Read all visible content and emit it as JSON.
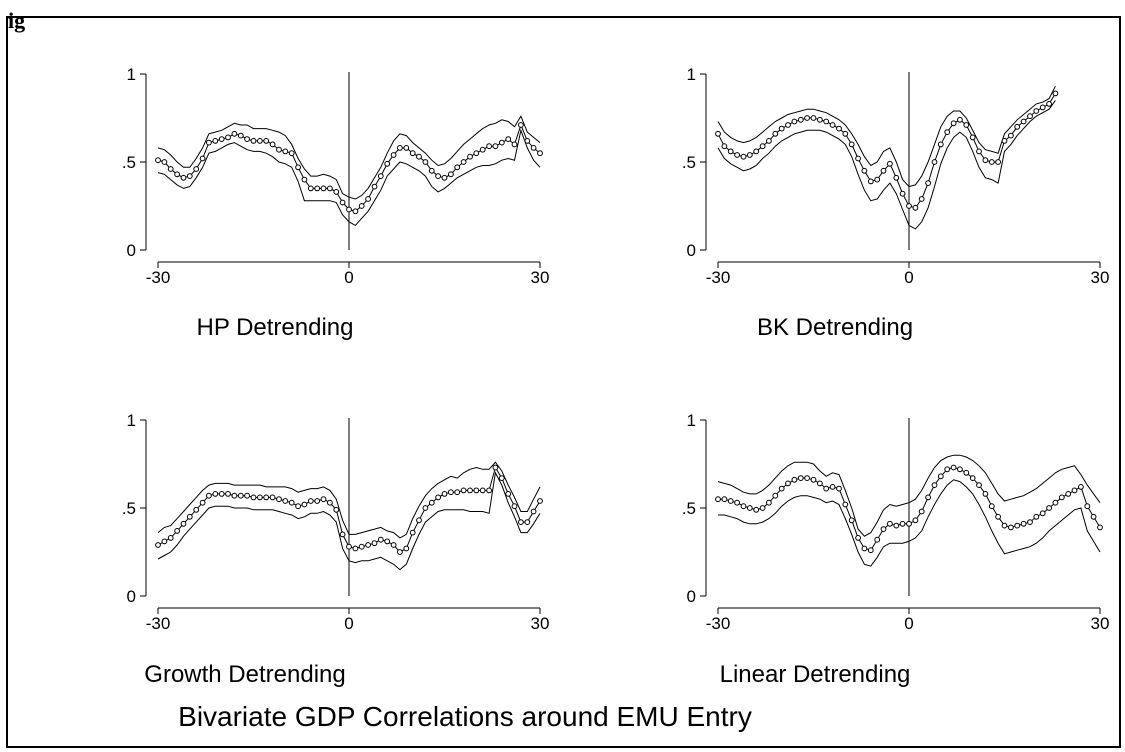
{
  "figure": {
    "corner_label": "ig",
    "caption": "Bivariate GDP Correlations around EMU Entry"
  },
  "colors": {
    "line": "#000000",
    "marker_fill": "#ffffff",
    "background": "#ffffff"
  },
  "chart_data": [
    {
      "type": "line",
      "title": "HP Detrending",
      "xlim": [
        -30,
        30
      ],
      "ylim": [
        0,
        1
      ],
      "x_ticks": [
        -30,
        0,
        30
      ],
      "x_tick_labels": [
        "-30",
        "0",
        "30"
      ],
      "y_ticks": [
        0,
        0.5,
        1
      ],
      "y_tick_labels": [
        "0",
        ".5",
        "1"
      ],
      "reference_line_x": 0,
      "x": [
        -30,
        -29,
        -28,
        -27,
        -26,
        -25,
        -24,
        -23,
        -22,
        -21,
        -20,
        -19,
        -18,
        -17,
        -16,
        -15,
        -14,
        -13,
        -12,
        -11,
        -10,
        -9,
        -8,
        -7,
        -6,
        -5,
        -4,
        -3,
        -2,
        -1,
        0,
        1,
        2,
        3,
        4,
        5,
        6,
        7,
        8,
        9,
        10,
        11,
        12,
        13,
        14,
        15,
        16,
        17,
        18,
        19,
        20,
        21,
        22,
        23,
        24,
        25,
        26,
        27,
        28,
        29,
        30
      ],
      "series": [
        {
          "role": "upper",
          "values": [
            0.58,
            0.57,
            0.54,
            0.5,
            0.47,
            0.47,
            0.52,
            0.58,
            0.66,
            0.67,
            0.68,
            0.7,
            0.72,
            0.71,
            0.71,
            0.69,
            0.69,
            0.69,
            0.68,
            0.67,
            0.65,
            0.6,
            0.52,
            0.46,
            0.42,
            0.42,
            0.43,
            0.42,
            0.4,
            0.32,
            0.3,
            0.29,
            0.31,
            0.35,
            0.41,
            0.47,
            0.55,
            0.62,
            0.66,
            0.65,
            0.61,
            0.58,
            0.55,
            0.51,
            0.48,
            0.49,
            0.52,
            0.56,
            0.6,
            0.63,
            0.66,
            0.69,
            0.71,
            0.72,
            0.74,
            0.73,
            0.7,
            0.76,
            0.67,
            0.64,
            0.61
          ]
        },
        {
          "role": "estimate",
          "markers": true,
          "values": [
            0.51,
            0.5,
            0.46,
            0.43,
            0.41,
            0.42,
            0.46,
            0.52,
            0.61,
            0.62,
            0.63,
            0.64,
            0.66,
            0.65,
            0.63,
            0.62,
            0.62,
            0.62,
            0.6,
            0.57,
            0.56,
            0.55,
            0.47,
            0.4,
            0.35,
            0.35,
            0.35,
            0.35,
            0.33,
            0.27,
            0.23,
            0.22,
            0.25,
            0.29,
            0.36,
            0.42,
            0.49,
            0.54,
            0.58,
            0.58,
            0.55,
            0.53,
            0.5,
            0.45,
            0.42,
            0.41,
            0.43,
            0.47,
            0.5,
            0.53,
            0.55,
            0.57,
            0.59,
            0.59,
            0.61,
            0.63,
            0.6,
            0.71,
            0.62,
            0.58,
            0.55
          ]
        },
        {
          "role": "lower",
          "values": [
            0.44,
            0.43,
            0.4,
            0.37,
            0.35,
            0.36,
            0.41,
            0.47,
            0.55,
            0.56,
            0.58,
            0.6,
            0.61,
            0.59,
            0.57,
            0.56,
            0.56,
            0.55,
            0.53,
            0.5,
            0.49,
            0.47,
            0.39,
            0.28,
            0.28,
            0.28,
            0.28,
            0.28,
            0.27,
            0.2,
            0.16,
            0.14,
            0.18,
            0.22,
            0.28,
            0.34,
            0.42,
            0.46,
            0.5,
            0.49,
            0.47,
            0.45,
            0.42,
            0.36,
            0.33,
            0.35,
            0.38,
            0.41,
            0.43,
            0.45,
            0.47,
            0.48,
            0.48,
            0.49,
            0.51,
            0.52,
            0.51,
            0.68,
            0.58,
            0.51,
            0.47
          ]
        }
      ]
    },
    {
      "type": "line",
      "title": "BK Detrending",
      "xlim": [
        -30,
        30
      ],
      "ylim": [
        0,
        1
      ],
      "x_ticks": [
        -30,
        0,
        30
      ],
      "x_tick_labels": [
        "-30",
        "0",
        "30"
      ],
      "y_ticks": [
        0,
        0.5,
        1
      ],
      "y_tick_labels": [
        "0",
        ".5",
        "1"
      ],
      "reference_line_x": 0,
      "x": [
        -30,
        -29,
        -28,
        -27,
        -26,
        -25,
        -24,
        -23,
        -22,
        -21,
        -20,
        -19,
        -18,
        -17,
        -16,
        -15,
        -14,
        -13,
        -12,
        -11,
        -10,
        -9,
        -8,
        -7,
        -6,
        -5,
        -4,
        -3,
        -2,
        -1,
        0,
        1,
        2,
        3,
        4,
        5,
        6,
        7,
        8,
        9,
        10,
        11,
        12,
        13,
        14,
        15,
        16,
        17,
        18,
        19,
        20,
        21,
        22,
        23
      ],
      "series": [
        {
          "role": "upper",
          "values": [
            0.73,
            0.67,
            0.64,
            0.62,
            0.61,
            0.62,
            0.64,
            0.67,
            0.7,
            0.73,
            0.75,
            0.77,
            0.78,
            0.79,
            0.8,
            0.8,
            0.79,
            0.78,
            0.76,
            0.74,
            0.71,
            0.66,
            0.6,
            0.53,
            0.48,
            0.5,
            0.56,
            0.58,
            0.5,
            0.4,
            0.36,
            0.37,
            0.42,
            0.5,
            0.6,
            0.7,
            0.76,
            0.79,
            0.79,
            0.75,
            0.68,
            0.61,
            0.57,
            0.56,
            0.55,
            0.66,
            0.7,
            0.74,
            0.77,
            0.8,
            0.83,
            0.84,
            0.86,
            0.93
          ]
        },
        {
          "role": "estimate",
          "markers": true,
          "values": [
            0.66,
            0.59,
            0.56,
            0.54,
            0.53,
            0.54,
            0.56,
            0.59,
            0.62,
            0.66,
            0.69,
            0.71,
            0.73,
            0.74,
            0.75,
            0.75,
            0.74,
            0.73,
            0.71,
            0.69,
            0.66,
            0.6,
            0.52,
            0.45,
            0.39,
            0.4,
            0.45,
            0.49,
            0.41,
            0.32,
            0.25,
            0.24,
            0.29,
            0.38,
            0.5,
            0.6,
            0.67,
            0.72,
            0.74,
            0.71,
            0.64,
            0.56,
            0.51,
            0.5,
            0.5,
            0.62,
            0.65,
            0.7,
            0.73,
            0.76,
            0.79,
            0.81,
            0.83,
            0.89
          ]
        },
        {
          "role": "lower",
          "values": [
            0.58,
            0.52,
            0.49,
            0.47,
            0.45,
            0.46,
            0.48,
            0.52,
            0.55,
            0.59,
            0.62,
            0.64,
            0.66,
            0.67,
            0.68,
            0.68,
            0.68,
            0.67,
            0.65,
            0.63,
            0.6,
            0.53,
            0.43,
            0.34,
            0.28,
            0.29,
            0.34,
            0.38,
            0.32,
            0.23,
            0.14,
            0.12,
            0.16,
            0.24,
            0.36,
            0.49,
            0.58,
            0.64,
            0.67,
            0.64,
            0.56,
            0.47,
            0.41,
            0.4,
            0.38,
            0.56,
            0.6,
            0.65,
            0.69,
            0.73,
            0.76,
            0.78,
            0.8,
            0.85
          ]
        }
      ]
    },
    {
      "type": "line",
      "title": "Growth Detrending",
      "xlim": [
        -30,
        30
      ],
      "ylim": [
        0,
        1
      ],
      "x_ticks": [
        -30,
        0,
        30
      ],
      "x_tick_labels": [
        "-30",
        "0",
        "30"
      ],
      "y_ticks": [
        0,
        0.5,
        1
      ],
      "y_tick_labels": [
        "0",
        ".5",
        "1"
      ],
      "reference_line_x": 0,
      "x": [
        -30,
        -29,
        -28,
        -27,
        -26,
        -25,
        -24,
        -23,
        -22,
        -21,
        -20,
        -19,
        -18,
        -17,
        -16,
        -15,
        -14,
        -13,
        -12,
        -11,
        -10,
        -9,
        -8,
        -7,
        -6,
        -5,
        -4,
        -3,
        -2,
        -1,
        0,
        1,
        2,
        3,
        4,
        5,
        6,
        7,
        8,
        9,
        10,
        11,
        12,
        13,
        14,
        15,
        16,
        17,
        18,
        19,
        20,
        21,
        22,
        23,
        24,
        25,
        26,
        27,
        28,
        29,
        30
      ],
      "series": [
        {
          "role": "upper",
          "values": [
            0.36,
            0.39,
            0.4,
            0.44,
            0.48,
            0.52,
            0.56,
            0.6,
            0.63,
            0.64,
            0.64,
            0.64,
            0.63,
            0.63,
            0.63,
            0.63,
            0.63,
            0.62,
            0.62,
            0.62,
            0.62,
            0.61,
            0.59,
            0.6,
            0.61,
            0.61,
            0.62,
            0.6,
            0.55,
            0.43,
            0.35,
            0.35,
            0.36,
            0.37,
            0.38,
            0.39,
            0.37,
            0.36,
            0.33,
            0.35,
            0.44,
            0.51,
            0.57,
            0.61,
            0.64,
            0.66,
            0.68,
            0.67,
            0.7,
            0.72,
            0.73,
            0.72,
            0.72,
            0.76,
            0.71,
            0.63,
            0.56,
            0.48,
            0.48,
            0.55,
            0.62
          ]
        },
        {
          "role": "estimate",
          "markers": true,
          "values": [
            0.29,
            0.31,
            0.33,
            0.37,
            0.41,
            0.45,
            0.49,
            0.53,
            0.57,
            0.58,
            0.58,
            0.58,
            0.57,
            0.57,
            0.57,
            0.56,
            0.56,
            0.56,
            0.56,
            0.55,
            0.54,
            0.53,
            0.51,
            0.52,
            0.54,
            0.54,
            0.55,
            0.53,
            0.49,
            0.35,
            0.28,
            0.27,
            0.28,
            0.29,
            0.3,
            0.32,
            0.31,
            0.29,
            0.25,
            0.27,
            0.36,
            0.43,
            0.5,
            0.53,
            0.56,
            0.58,
            0.59,
            0.59,
            0.6,
            0.6,
            0.6,
            0.6,
            0.6,
            0.73,
            0.67,
            0.58,
            0.51,
            0.42,
            0.42,
            0.48,
            0.54
          ]
        },
        {
          "role": "lower",
          "values": [
            0.21,
            0.23,
            0.25,
            0.29,
            0.34,
            0.38,
            0.42,
            0.46,
            0.5,
            0.51,
            0.51,
            0.51,
            0.5,
            0.5,
            0.5,
            0.49,
            0.49,
            0.49,
            0.49,
            0.48,
            0.47,
            0.46,
            0.44,
            0.45,
            0.47,
            0.47,
            0.48,
            0.46,
            0.42,
            0.27,
            0.2,
            0.19,
            0.2,
            0.2,
            0.21,
            0.22,
            0.2,
            0.18,
            0.15,
            0.18,
            0.27,
            0.35,
            0.42,
            0.45,
            0.48,
            0.49,
            0.49,
            0.49,
            0.49,
            0.48,
            0.48,
            0.48,
            0.47,
            0.7,
            0.63,
            0.53,
            0.45,
            0.36,
            0.36,
            0.41,
            0.47
          ]
        }
      ]
    },
    {
      "type": "line",
      "title": "Linear Detrending",
      "xlim": [
        -30,
        30
      ],
      "ylim": [
        0,
        1
      ],
      "x_ticks": [
        -30,
        0,
        30
      ],
      "x_tick_labels": [
        "-30",
        "0",
        "30"
      ],
      "y_ticks": [
        0,
        0.5,
        1
      ],
      "y_tick_labels": [
        "0",
        ".5",
        "1"
      ],
      "reference_line_x": 0,
      "x": [
        -30,
        -29,
        -28,
        -27,
        -26,
        -25,
        -24,
        -23,
        -22,
        -21,
        -20,
        -19,
        -18,
        -17,
        -16,
        -15,
        -14,
        -13,
        -12,
        -11,
        -10,
        -9,
        -8,
        -7,
        -6,
        -5,
        -4,
        -3,
        -2,
        -1,
        0,
        1,
        2,
        3,
        4,
        5,
        6,
        7,
        8,
        9,
        10,
        11,
        12,
        13,
        14,
        15,
        16,
        17,
        18,
        19,
        20,
        21,
        22,
        23,
        24,
        25,
        26,
        27,
        28,
        29,
        30
      ],
      "series": [
        {
          "role": "upper",
          "values": [
            0.65,
            0.64,
            0.63,
            0.61,
            0.59,
            0.58,
            0.58,
            0.6,
            0.63,
            0.67,
            0.71,
            0.74,
            0.76,
            0.76,
            0.76,
            0.75,
            0.71,
            0.68,
            0.7,
            0.69,
            0.6,
            0.5,
            0.38,
            0.34,
            0.36,
            0.42,
            0.49,
            0.52,
            0.51,
            0.52,
            0.53,
            0.55,
            0.6,
            0.67,
            0.73,
            0.77,
            0.79,
            0.8,
            0.8,
            0.79,
            0.77,
            0.74,
            0.7,
            0.64,
            0.58,
            0.54,
            0.55,
            0.56,
            0.57,
            0.59,
            0.61,
            0.64,
            0.67,
            0.7,
            0.72,
            0.73,
            0.74,
            0.69,
            0.63,
            0.58,
            0.53
          ]
        },
        {
          "role": "estimate",
          "markers": true,
          "values": [
            0.55,
            0.55,
            0.54,
            0.53,
            0.51,
            0.5,
            0.49,
            0.5,
            0.53,
            0.57,
            0.61,
            0.64,
            0.66,
            0.67,
            0.67,
            0.66,
            0.64,
            0.61,
            0.62,
            0.61,
            0.52,
            0.43,
            0.33,
            0.27,
            0.26,
            0.32,
            0.38,
            0.41,
            0.4,
            0.41,
            0.41,
            0.43,
            0.48,
            0.56,
            0.63,
            0.68,
            0.72,
            0.73,
            0.72,
            0.7,
            0.67,
            0.63,
            0.58,
            0.51,
            0.45,
            0.4,
            0.39,
            0.4,
            0.41,
            0.42,
            0.45,
            0.47,
            0.5,
            0.53,
            0.56,
            0.58,
            0.6,
            0.62,
            0.51,
            0.45,
            0.39
          ]
        },
        {
          "role": "lower",
          "values": [
            0.46,
            0.46,
            0.45,
            0.44,
            0.42,
            0.41,
            0.41,
            0.42,
            0.44,
            0.47,
            0.51,
            0.54,
            0.56,
            0.57,
            0.57,
            0.56,
            0.55,
            0.53,
            0.54,
            0.52,
            0.44,
            0.35,
            0.25,
            0.18,
            0.17,
            0.22,
            0.28,
            0.3,
            0.3,
            0.3,
            0.31,
            0.33,
            0.37,
            0.45,
            0.52,
            0.58,
            0.63,
            0.66,
            0.65,
            0.62,
            0.58,
            0.52,
            0.45,
            0.37,
            0.3,
            0.24,
            0.25,
            0.26,
            0.27,
            0.28,
            0.3,
            0.33,
            0.37,
            0.4,
            0.43,
            0.46,
            0.49,
            0.5,
            0.37,
            0.31,
            0.25
          ]
        }
      ]
    }
  ]
}
